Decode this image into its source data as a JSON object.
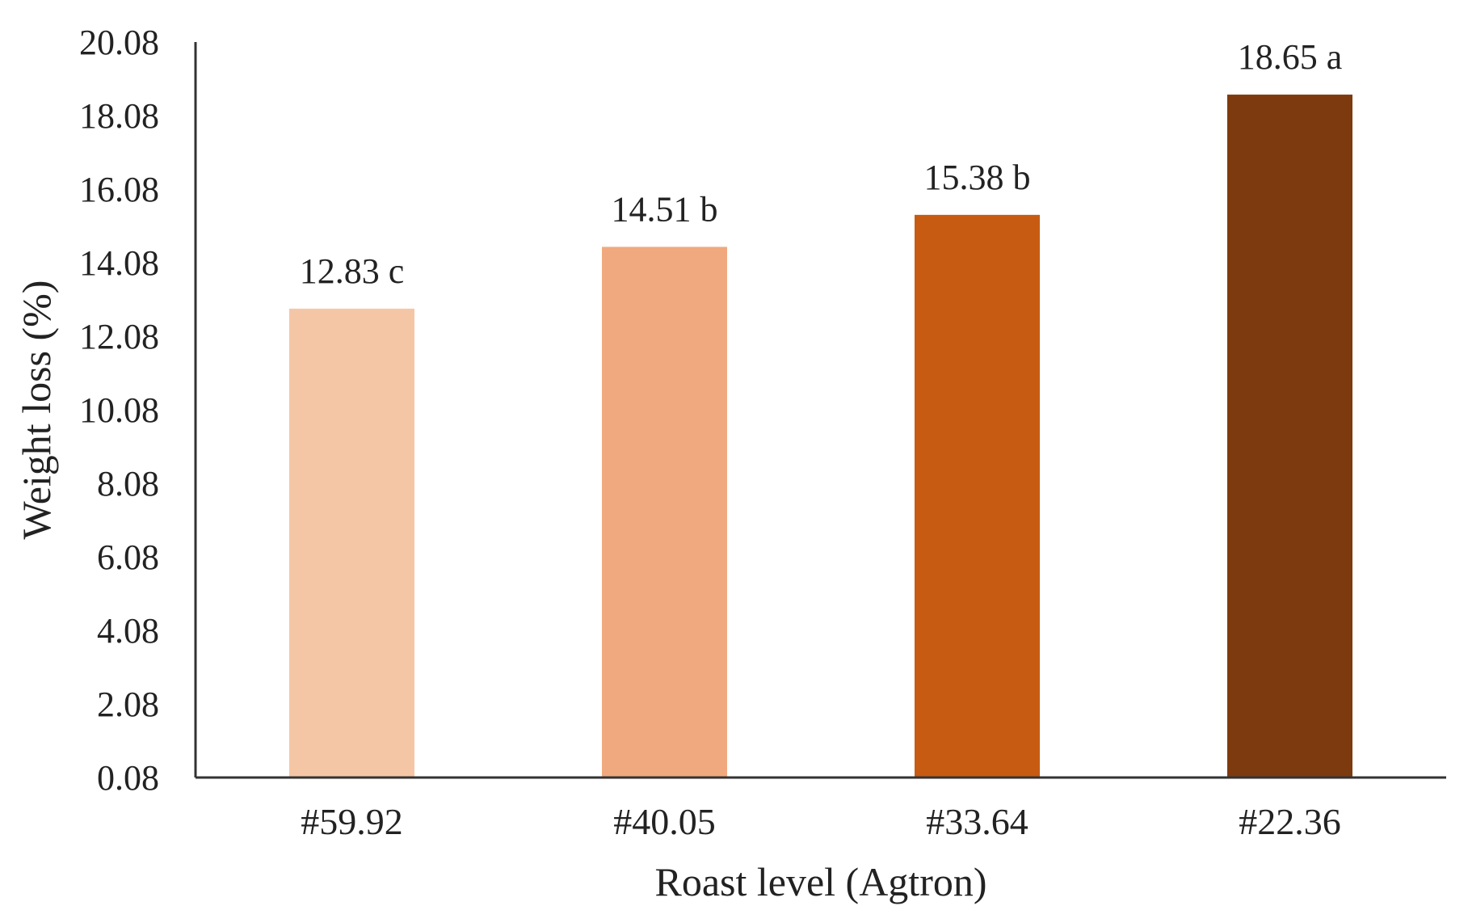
{
  "chart_data": {
    "type": "bar",
    "title": "",
    "xlabel": "Roast level (Agtron)",
    "ylabel": "Weight loss (%)",
    "categories": [
      "#59.92",
      "#40.05",
      "#33.64",
      "#22.36"
    ],
    "values": [
      12.83,
      14.51,
      15.38,
      18.65
    ],
    "data_labels": [
      "12.83 c",
      "14.51 b",
      "15.38 b",
      "18.65 a"
    ],
    "bar_colors": [
      "#F5C6A5",
      "#F0A97E",
      "#C75B12",
      "#7E3A0F"
    ],
    "ylim": [
      0.08,
      20.08
    ],
    "yticks": [
      0.08,
      2.08,
      4.08,
      6.08,
      8.08,
      10.08,
      12.08,
      14.08,
      16.08,
      18.08,
      20.08
    ],
    "ytick_labels": [
      "0.08",
      "2.08",
      "4.08",
      "6.08",
      "8.08",
      "10.08",
      "12.08",
      "14.08",
      "16.08",
      "18.08",
      "20.08"
    ],
    "grid": false,
    "legend": "none"
  }
}
